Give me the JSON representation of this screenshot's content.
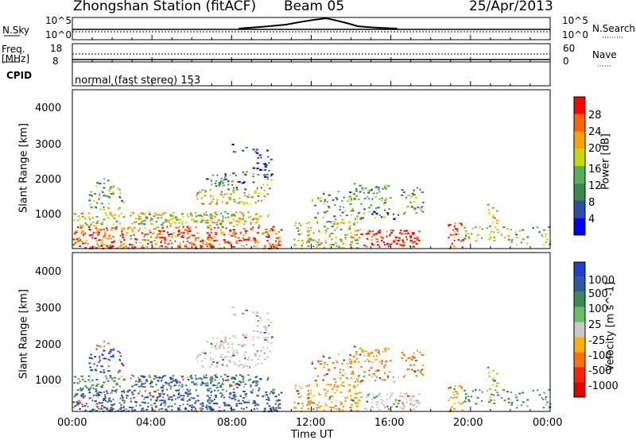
{
  "header": {
    "station": "Zhongshan Station (fitACF)",
    "beam": "Beam 05",
    "date": "25/Apr/2013"
  },
  "noise_panel": {
    "left_label": "N.Sky",
    "right_label": "N.Search",
    "ticks_left": [
      "10^5",
      "10^0"
    ],
    "ticks_right": [
      "10^5",
      "10^0"
    ]
  },
  "freq_panel": {
    "left_label_1": "Freq.",
    "left_label_2": "[MHz]",
    "ticks_left": [
      "18",
      "8"
    ],
    "right_label": "Nave",
    "ticks_right": [
      "60",
      "0"
    ]
  },
  "cpid": {
    "label": "CPID",
    "value": "normal (fast stereo) 153"
  },
  "chart_data": [
    {
      "type": "heatmap",
      "name_shown": "Power [dB]",
      "ylabel": "Slant Range [km]",
      "yticks": [
        "1000",
        "2000",
        "3000",
        "4000"
      ],
      "ylim": [
        180,
        4500
      ],
      "xlim": [
        0,
        24
      ],
      "colorbar_label": "Power [dB]",
      "colorbar_ticks": [
        "4",
        "8",
        "12",
        "16",
        "20",
        "24",
        "28"
      ],
      "colorbar_colors": [
        "#0000ff",
        "#2a4fa8",
        "#3b8a4a",
        "#55b055",
        "#c8d800",
        "#ffa000",
        "#ff6000",
        "#ff0000"
      ]
    },
    {
      "type": "heatmap",
      "ylabel": "Slant Range [km]",
      "yticks": [
        "1000",
        "2000",
        "3000",
        "4000"
      ],
      "ylim": [
        180,
        4500
      ],
      "xlim": [
        0,
        24
      ],
      "colorbar_label": "Velocity [m s^-1]",
      "colorbar_ticks": [
        "1000",
        "500",
        "100",
        "25",
        "-25",
        "-100",
        "-500",
        "-1000"
      ],
      "colorbar_colors": [
        "#2040d0",
        "#3058a0",
        "#3a8a5a",
        "#66c060",
        "#c8c8c8",
        "#ffb000",
        "#ff7000",
        "#ff2000",
        "#e00000"
      ]
    }
  ],
  "xaxis": {
    "ticks": [
      "00:00",
      "04:00",
      "08:00",
      "12:00",
      "16:00",
      "20:00",
      "00:00"
    ],
    "label": "Time UT"
  }
}
